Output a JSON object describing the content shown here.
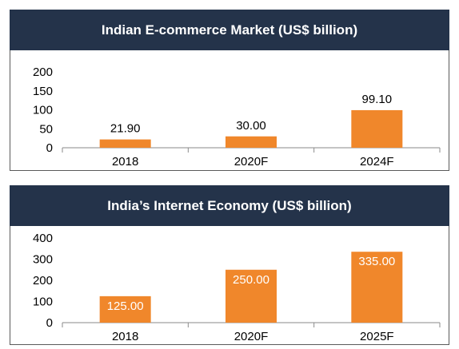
{
  "chart_data": [
    {
      "type": "bar",
      "title": "Indian E-commerce Market (US$ billion)",
      "categories": [
        "2018",
        "2020F",
        "2024F"
      ],
      "values": [
        21.9,
        30.0,
        99.1
      ],
      "value_labels": [
        "21.90",
        "30.00",
        "99.10"
      ],
      "label_position": "above",
      "ylim": [
        0,
        200
      ],
      "yticks": [
        0,
        50,
        100,
        150,
        200
      ],
      "bar_color": "#f0872b",
      "grid": false
    },
    {
      "type": "bar",
      "title": "India’s Internet Economy (US$ billion)",
      "categories": [
        "2018",
        "2020F",
        "2025F"
      ],
      "values": [
        125.0,
        250.0,
        335.0
      ],
      "value_labels": [
        "125.00",
        "250.00",
        "335.00"
      ],
      "label_position": "inside",
      "ylim": [
        0,
        400
      ],
      "yticks": [
        0,
        100,
        200,
        300,
        400
      ],
      "bar_color": "#f0872b",
      "grid": false
    }
  ],
  "colors": {
    "banner": "#24334a",
    "bar": "#f0872b"
  }
}
